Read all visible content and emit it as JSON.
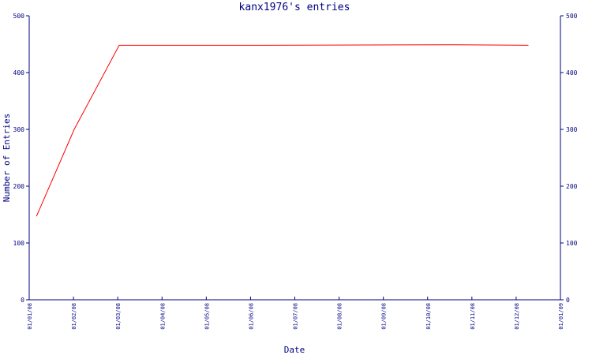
{
  "chart_data": {
    "type": "line",
    "title": "kanx1976's entries",
    "xlabel": "Date",
    "ylabel": "Number of Entries",
    "ylim": [
      0,
      500
    ],
    "y_ticks": [
      0,
      100,
      200,
      300,
      400,
      500
    ],
    "x_ticks": [
      "01/01/08",
      "01/02/08",
      "01/03/08",
      "01/04/08",
      "01/05/08",
      "01/06/08",
      "01/07/08",
      "01/08/08",
      "01/09/08",
      "01/10/08",
      "01/11/08",
      "01/12/08",
      "01/01/09"
    ],
    "x_range": [
      "2008-01-01",
      "2009-01-01"
    ],
    "grid": false,
    "line_color": "#ff0000",
    "axis_color": "#000080",
    "series": [
      {
        "x": [
          "2008-01-06",
          "2008-02-01",
          "2008-03-03",
          "2008-06-10",
          "2008-10-20",
          "2008-12-10"
        ],
        "values": [
          147,
          300,
          448,
          448,
          449,
          448
        ]
      }
    ]
  }
}
